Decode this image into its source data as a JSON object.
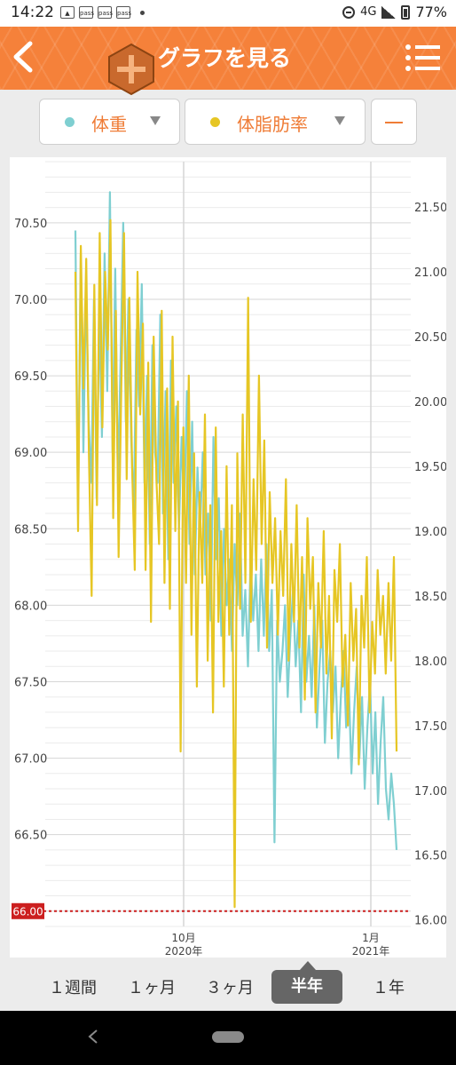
{
  "status_bar": {
    "time": "14:22",
    "notification_icons": [
      "image-icon",
      "pass-icon",
      "pass-icon",
      "pass-icon"
    ],
    "pass_label": "pass",
    "network": "4G",
    "battery": "77%"
  },
  "header": {
    "title": "グラフを見る",
    "accent": "#f5813a"
  },
  "selectors": {
    "primary_label": "体重",
    "primary_color": "#7fcfd1",
    "secondary_label": "体脂肪率",
    "secondary_color": "#e6c624",
    "minus_label": "—"
  },
  "chart_data": {
    "type": "line",
    "title": "",
    "x_ticks": [
      {
        "label": "10月",
        "sub": "2020年"
      },
      {
        "label": "1月",
        "sub": "2021年"
      }
    ],
    "y_left": {
      "ticks": [
        "70.50",
        "70.00",
        "69.50",
        "69.00",
        "68.50",
        "68.00",
        "67.50",
        "67.00",
        "66.50"
      ],
      "min": 65.9,
      "max": 70.9
    },
    "y_right": {
      "ticks": [
        "21.50",
        "21.00",
        "20.50",
        "20.00",
        "19.50",
        "19.00",
        "18.50",
        "18.00",
        "17.50",
        "17.00",
        "16.50",
        "16.00"
      ],
      "min": 15.95,
      "max": 21.85
    },
    "grid": true,
    "target_line": {
      "value": 66.0,
      "label": "66.00",
      "color": "#cc1f1f"
    },
    "series": [
      {
        "name": "体重",
        "axis": "left",
        "color": "#7fcfd1",
        "values": [
          70.45,
          68.6,
          70.3,
          69.0,
          70.1,
          69.2,
          68.8,
          70.0,
          68.7,
          69.9,
          69.1,
          70.3,
          69.4,
          70.7,
          69.0,
          70.2,
          68.8,
          69.6,
          70.5,
          69.2,
          70.0,
          69.1,
          68.6,
          69.8,
          69.3,
          70.1,
          68.8,
          69.5,
          68.4,
          69.7,
          69.0,
          68.8,
          69.9,
          68.6,
          69.4,
          68.3,
          69.6,
          68.8,
          69.3,
          68.5,
          69.1,
          68.6,
          69.4,
          68.4,
          69.2,
          68.2,
          68.9,
          68.5,
          69.0,
          68.2,
          68.6,
          67.9,
          69.1,
          68.3,
          68.7,
          67.8,
          68.5,
          68.0,
          68.3,
          67.7,
          68.4,
          68.0,
          68.6,
          67.8,
          68.1,
          67.6,
          68.3,
          67.9,
          68.2,
          67.7,
          68.3,
          67.8,
          68.4,
          67.7,
          68.1,
          66.45,
          67.9,
          67.5,
          67.7,
          68.0,
          67.4,
          67.8,
          68.1,
          67.6,
          67.9,
          67.3,
          68.2,
          67.5,
          67.8,
          67.4,
          68.0,
          67.2,
          67.6,
          67.9,
          67.1,
          67.5,
          67.7,
          67.3,
          67.6,
          67.0,
          67.4,
          67.7,
          67.2,
          67.5,
          66.9,
          67.3,
          67.6,
          67.0,
          67.4,
          66.8,
          67.2,
          67.5,
          66.9,
          67.3,
          66.7,
          67.1,
          67.4,
          66.8,
          66.6,
          66.9,
          66.7,
          66.4
        ]
      },
      {
        "name": "体脂肪率",
        "axis": "right",
        "color": "#e6c624",
        "values": [
          21.0,
          19.0,
          21.2,
          20.1,
          21.1,
          19.6,
          18.5,
          20.9,
          19.2,
          21.3,
          19.8,
          21.0,
          20.4,
          21.4,
          19.1,
          20.7,
          18.8,
          20.1,
          21.3,
          19.4,
          20.8,
          19.5,
          18.7,
          21.0,
          19.9,
          20.6,
          18.7,
          20.3,
          18.3,
          20.5,
          19.4,
          18.9,
          20.7,
          18.6,
          20.1,
          18.4,
          20.5,
          19.0,
          20.0,
          17.3,
          19.8,
          18.6,
          20.2,
          18.2,
          19.6,
          17.8,
          19.3,
          18.6,
          19.9,
          18.0,
          19.2,
          17.6,
          19.8,
          18.3,
          19.0,
          17.8,
          19.5,
          18.2,
          19.2,
          16.1,
          19.6,
          18.4,
          19.9,
          18.6,
          20.8,
          18.3,
          19.4,
          18.7,
          20.2,
          18.9,
          19.7,
          18.1,
          19.3,
          18.6,
          19.1,
          18.2,
          19.0,
          18.5,
          19.4,
          18.0,
          18.9,
          18.3,
          19.2,
          18.1,
          18.8,
          17.7,
          19.1,
          18.4,
          18.8,
          17.6,
          18.6,
          18.1,
          19.0,
          17.9,
          18.5,
          17.4,
          18.7,
          18.3,
          18.9,
          17.8,
          18.2,
          17.5,
          18.6,
          18.0,
          18.4,
          17.2,
          18.5,
          18.1,
          18.8,
          17.6,
          18.3,
          17.9,
          18.7,
          18.2,
          18.5,
          17.9,
          18.6,
          18.0,
          18.8,
          17.3
        ]
      }
    ]
  },
  "periods": {
    "items": [
      "１週間",
      "１ヶ月",
      "３ヶ月",
      "半年",
      "１年"
    ],
    "active": "半年"
  }
}
